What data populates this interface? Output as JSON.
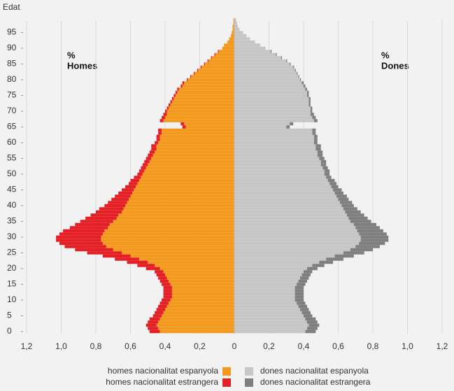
{
  "chart_data": {
    "type": "pyramid",
    "y_label": "Edat",
    "left_label": [
      "%",
      "Homes"
    ],
    "right_label": [
      "%",
      "Dones"
    ],
    "y": [
      0,
      1,
      2,
      3,
      4,
      5,
      6,
      7,
      8,
      9,
      10,
      11,
      12,
      13,
      14,
      15,
      16,
      17,
      18,
      19,
      20,
      21,
      22,
      23,
      24,
      25,
      26,
      27,
      28,
      29,
      30,
      31,
      32,
      33,
      34,
      35,
      36,
      37,
      38,
      39,
      40,
      41,
      42,
      43,
      44,
      45,
      46,
      47,
      48,
      49,
      50,
      51,
      52,
      53,
      54,
      55,
      56,
      57,
      58,
      59,
      60,
      61,
      62,
      63,
      64,
      65,
      66,
      67,
      68,
      69,
      70,
      71,
      72,
      73,
      74,
      75,
      76,
      77,
      78,
      79,
      80,
      81,
      82,
      83,
      84,
      85,
      86,
      87,
      88,
      89,
      90,
      91,
      92,
      93,
      94,
      95,
      96,
      97,
      98,
      99
    ],
    "ylim": [
      0,
      100
    ],
    "yticks": [
      0,
      5,
      10,
      15,
      20,
      25,
      30,
      35,
      40,
      45,
      50,
      55,
      60,
      65,
      70,
      75,
      80,
      85,
      90,
      95
    ],
    "xlim": [
      -1.2,
      1.2
    ],
    "xticks": [
      {
        "value": -1.2,
        "label": "1,2"
      },
      {
        "value": -1.0,
        "label": "1,0"
      },
      {
        "value": -0.8,
        "label": "0,8"
      },
      {
        "value": -0.6,
        "label": "0,6"
      },
      {
        "value": -0.4,
        "label": "0,4"
      },
      {
        "value": -0.2,
        "label": "0,2"
      },
      0,
      {
        "value": 0.2,
        "label": "0,2"
      },
      {
        "value": 0.4,
        "label": "0,4"
      },
      {
        "value": 0.6,
        "label": "0,6"
      },
      {
        "value": 0.8,
        "label": "0,8"
      },
      {
        "value": 1.0,
        "label": "1,0"
      },
      {
        "value": 1.2,
        "label": "1,2"
      }
    ],
    "grid": true,
    "series": [
      {
        "name": "homes nacionalitat espanyola",
        "side": "left",
        "color": "#f39a1e",
        "values": [
          0.43,
          0.44,
          0.45,
          0.44,
          0.43,
          0.42,
          0.41,
          0.4,
          0.39,
          0.38,
          0.37,
          0.36,
          0.36,
          0.36,
          0.36,
          0.37,
          0.38,
          0.39,
          0.4,
          0.41,
          0.43,
          0.46,
          0.5,
          0.55,
          0.6,
          0.65,
          0.7,
          0.74,
          0.76,
          0.77,
          0.77,
          0.76,
          0.75,
          0.73,
          0.72,
          0.7,
          0.68,
          0.67,
          0.65,
          0.64,
          0.63,
          0.62,
          0.61,
          0.6,
          0.59,
          0.58,
          0.57,
          0.56,
          0.55,
          0.54,
          0.53,
          0.52,
          0.51,
          0.5,
          0.49,
          0.48,
          0.47,
          0.46,
          0.45,
          0.45,
          0.44,
          0.43,
          0.43,
          0.42,
          0.42,
          0.28,
          0.29,
          0.41,
          0.4,
          0.39,
          0.39,
          0.38,
          0.37,
          0.36,
          0.35,
          0.34,
          0.33,
          0.32,
          0.3,
          0.29,
          0.27,
          0.25,
          0.23,
          0.21,
          0.19,
          0.17,
          0.15,
          0.13,
          0.11,
          0.09,
          0.07,
          0.06,
          0.04,
          0.03,
          0.02,
          0.015,
          0.01,
          0.01,
          0.005,
          0.005
        ]
      },
      {
        "name": "homes nacionalitat estrangera",
        "side": "left",
        "color": "#e41f26",
        "values": [
          0.06,
          0.06,
          0.06,
          0.06,
          0.06,
          0.05,
          0.05,
          0.05,
          0.05,
          0.05,
          0.05,
          0.05,
          0.05,
          0.05,
          0.05,
          0.05,
          0.05,
          0.05,
          0.05,
          0.05,
          0.08,
          0.1,
          0.12,
          0.14,
          0.16,
          0.2,
          0.22,
          0.24,
          0.25,
          0.26,
          0.26,
          0.25,
          0.24,
          0.22,
          0.2,
          0.19,
          0.18,
          0.16,
          0.15,
          0.14,
          0.12,
          0.11,
          0.1,
          0.09,
          0.08,
          0.07,
          0.06,
          0.05,
          0.05,
          0.04,
          0.03,
          0.03,
          0.03,
          0.03,
          0.03,
          0.03,
          0.03,
          0.03,
          0.03,
          0.03,
          0.02,
          0.02,
          0.02,
          0.02,
          0.02,
          0.02,
          0.02,
          0.02,
          0.02,
          0.02,
          0.01,
          0.01,
          0.01,
          0.01,
          0.01,
          0.01,
          0.01,
          0.01,
          0.01,
          0.01,
          0.005,
          0.005,
          0.005,
          0.005,
          0.005,
          0.005,
          0.005,
          0.005,
          0.005,
          0.005,
          0,
          0,
          0,
          0,
          0,
          0,
          0,
          0,
          0,
          0
        ]
      },
      {
        "name": "dones nacionalitat espanyola",
        "side": "right",
        "color": "#c6c6c6",
        "values": [
          0.41,
          0.42,
          0.43,
          0.42,
          0.41,
          0.4,
          0.39,
          0.38,
          0.37,
          0.36,
          0.35,
          0.35,
          0.35,
          0.35,
          0.35,
          0.36,
          0.37,
          0.38,
          0.39,
          0.4,
          0.42,
          0.45,
          0.49,
          0.53,
          0.58,
          0.63,
          0.67,
          0.7,
          0.72,
          0.73,
          0.73,
          0.72,
          0.71,
          0.7,
          0.69,
          0.67,
          0.66,
          0.65,
          0.64,
          0.63,
          0.62,
          0.61,
          0.6,
          0.59,
          0.58,
          0.57,
          0.56,
          0.55,
          0.54,
          0.53,
          0.52,
          0.52,
          0.51,
          0.5,
          0.5,
          0.49,
          0.48,
          0.48,
          0.47,
          0.47,
          0.46,
          0.46,
          0.46,
          0.45,
          0.45,
          0.3,
          0.32,
          0.46,
          0.45,
          0.44,
          0.44,
          0.44,
          0.43,
          0.43,
          0.43,
          0.42,
          0.42,
          0.41,
          0.4,
          0.39,
          0.38,
          0.37,
          0.36,
          0.35,
          0.34,
          0.32,
          0.3,
          0.27,
          0.24,
          0.21,
          0.18,
          0.15,
          0.12,
          0.09,
          0.07,
          0.05,
          0.03,
          0.02,
          0.015,
          0.01
        ]
      },
      {
        "name": "dones nacionalitat estrangera",
        "side": "right",
        "color": "#7f7f7f",
        "values": [
          0.06,
          0.06,
          0.06,
          0.06,
          0.06,
          0.05,
          0.05,
          0.05,
          0.05,
          0.05,
          0.05,
          0.05,
          0.05,
          0.05,
          0.05,
          0.05,
          0.05,
          0.05,
          0.05,
          0.05,
          0.06,
          0.07,
          0.08,
          0.1,
          0.11,
          0.12,
          0.13,
          0.14,
          0.15,
          0.16,
          0.16,
          0.16,
          0.15,
          0.14,
          0.13,
          0.12,
          0.11,
          0.1,
          0.09,
          0.08,
          0.07,
          0.07,
          0.06,
          0.06,
          0.05,
          0.05,
          0.04,
          0.04,
          0.04,
          0.03,
          0.03,
          0.03,
          0.03,
          0.03,
          0.03,
          0.03,
          0.03,
          0.03,
          0.03,
          0.03,
          0.02,
          0.02,
          0.02,
          0.02,
          0.02,
          0.02,
          0.02,
          0.02,
          0.02,
          0.02,
          0.01,
          0.01,
          0.01,
          0.01,
          0.01,
          0.01,
          0.01,
          0.01,
          0.01,
          0.01,
          0.005,
          0.005,
          0.005,
          0.005,
          0.005,
          0.005,
          0.005,
          0.005,
          0.005,
          0.005,
          0,
          0,
          0,
          0,
          0,
          0,
          0,
          0,
          0,
          0
        ]
      }
    ]
  }
}
